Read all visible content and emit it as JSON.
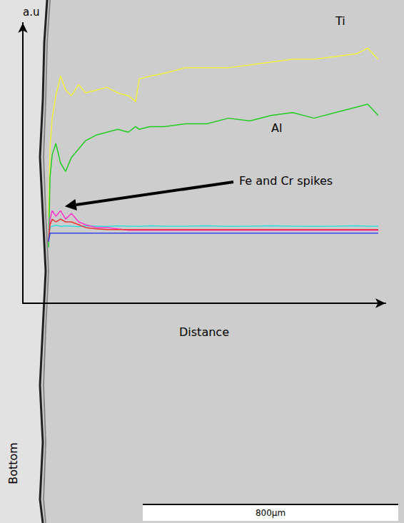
{
  "chart_data": {
    "type": "line",
    "x_label": "Distance",
    "y_label": "a.u",
    "xlim": [
      0,
      100
    ],
    "ylim": [
      0,
      100
    ],
    "xticks": [],
    "yticks": [],
    "tick_labels": false,
    "grid": false,
    "x": [
      7.1,
      7.5,
      8.1,
      9.1,
      10.4,
      11.8,
      13.4,
      15.4,
      17.3,
      20.3,
      23.2,
      26.2,
      29.1,
      31.1,
      32.1,
      35.0,
      39.0,
      44.9,
      50.8,
      56.7,
      62.6,
      68.5,
      74.4,
      80.3,
      86.2,
      92.1,
      95.1,
      98.0
    ],
    "series": [
      {
        "name": "Ti",
        "color": "#f0f040",
        "values": [
          31,
          56,
          66,
          74,
          81,
          76,
          74,
          78,
          75,
          76,
          77,
          75,
          74,
          72,
          80,
          81,
          82,
          84,
          84,
          84,
          85,
          86,
          87,
          87,
          88,
          89,
          91,
          87
        ]
      },
      {
        "name": "Al",
        "color": "#22cc22",
        "values": [
          20,
          45,
          53,
          57,
          50,
          47,
          52,
          55,
          58,
          60,
          61,
          62,
          61,
          63,
          62,
          63,
          63,
          64,
          64,
          66,
          65,
          67,
          68,
          66,
          68,
          70,
          71,
          67
        ]
      },
      {
        "color": "#33dddd",
        "values": [
          23,
          27,
          27.5,
          27.8,
          27.4,
          27.6,
          27.5,
          27.3,
          27.6,
          27.5,
          27.4,
          27.6,
          27.5,
          27.5,
          27.4,
          27.6,
          27.5,
          27.5,
          27.6,
          27.4,
          27.5,
          27.6,
          27.5,
          27.4,
          27.5,
          27.6,
          27.5,
          27.5
        ]
      },
      {
        "color": "#ff33cc",
        "values": [
          22,
          30,
          33,
          31,
          33,
          30,
          32,
          29,
          28,
          27,
          27,
          26.5,
          26,
          26,
          26,
          26,
          26,
          26,
          26,
          26,
          26,
          26,
          26,
          26,
          26,
          26,
          26,
          26
        ]
      },
      {
        "color": "#ee3333",
        "values": [
          22,
          28,
          30,
          29,
          30,
          29,
          29,
          28,
          27,
          26.5,
          26.3,
          26.3,
          26.3,
          26.3,
          26.3,
          26.3,
          26.3,
          26.3,
          26.3,
          26.3,
          26.3,
          26.3,
          26.3,
          26.3,
          26.3,
          26.3,
          26.3,
          26.3
        ]
      },
      {
        "color": "#3344ee",
        "values": [
          22,
          25,
          25,
          25,
          25,
          25,
          25,
          25,
          25,
          25,
          25,
          25,
          25,
          25,
          25,
          25,
          25,
          25,
          25,
          25,
          25,
          25,
          25,
          25,
          25,
          25,
          25,
          25
        ]
      }
    ],
    "annotations": [
      {
        "text": "Fe and Cr spikes"
      }
    ]
  },
  "image": {
    "side_label": "Bottom",
    "scale_bar": "800µm"
  }
}
